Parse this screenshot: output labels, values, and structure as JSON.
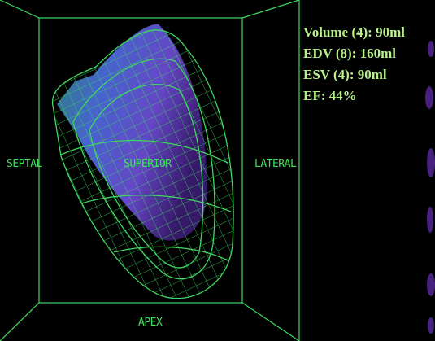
{
  "view_labels": {
    "septal": "SEPTAL",
    "superior": "SUPERIOR",
    "lateral": "LATERAL",
    "apex": "APEX"
  },
  "measurements": [
    "Volume (4): 90ml",
    "EDV (8): 160ml",
    "ESV (4): 90ml",
    "EF: 44%"
  ]
}
